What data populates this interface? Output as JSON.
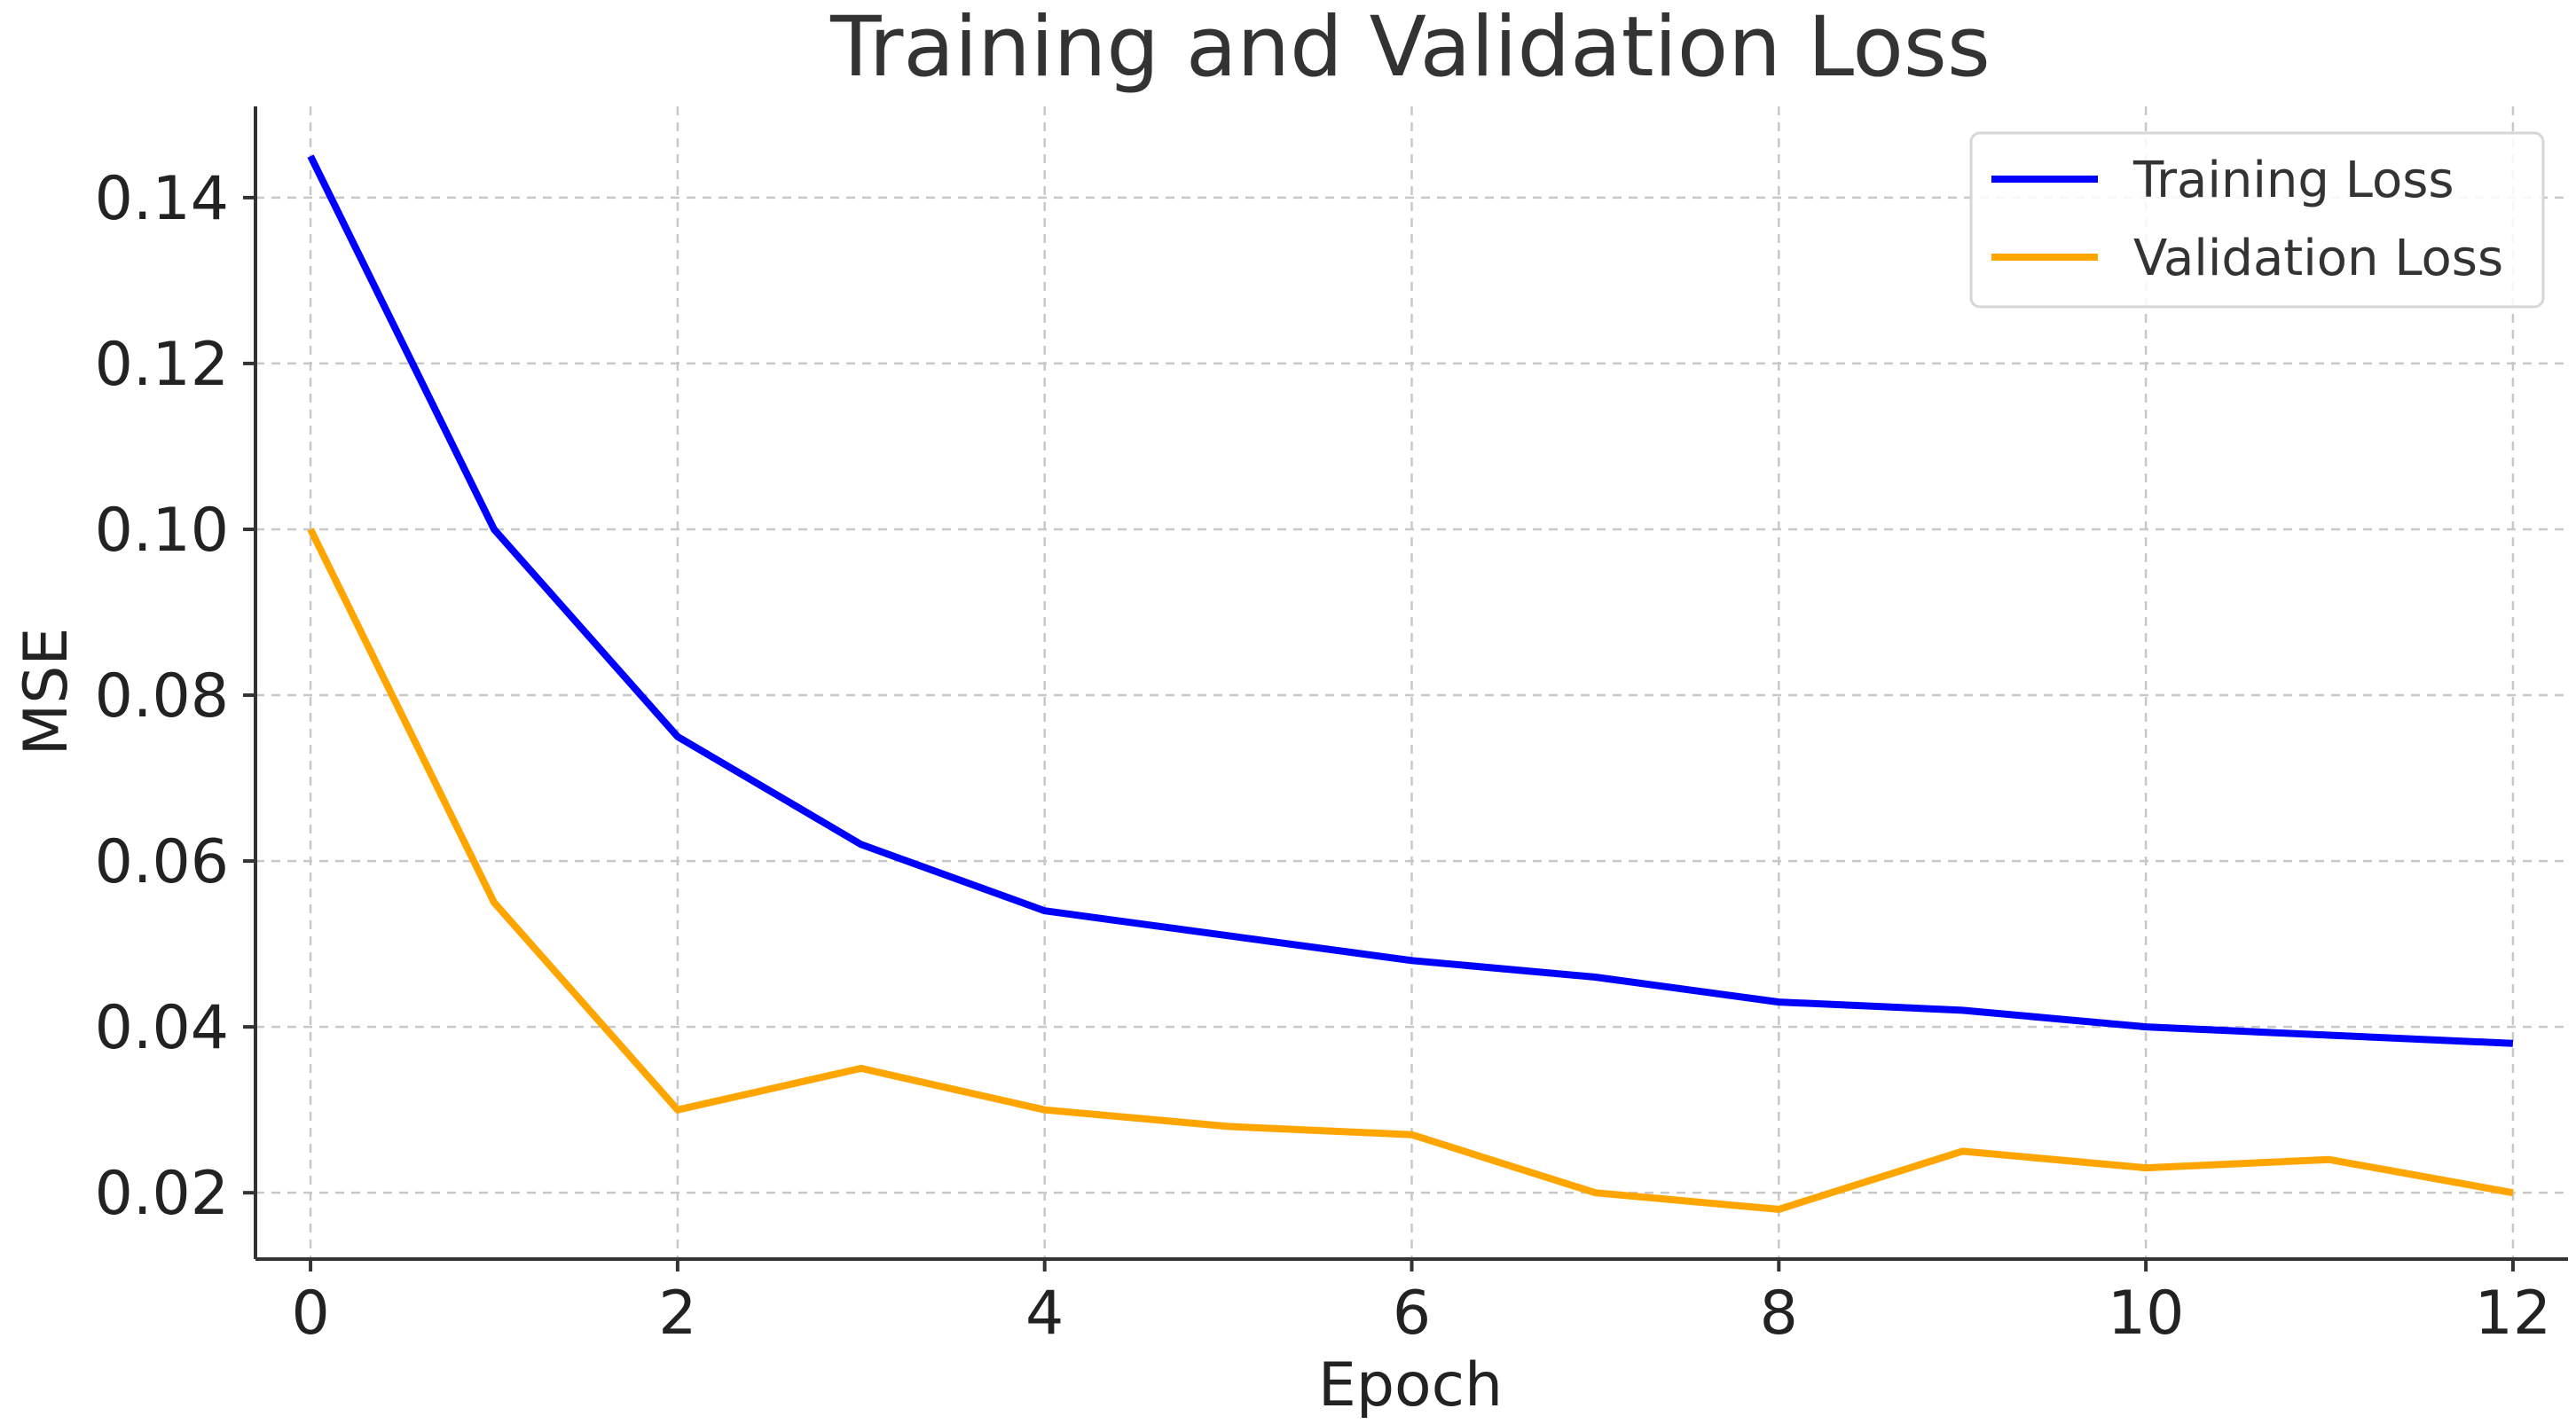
{
  "chart_data": {
    "type": "line",
    "title": "Training and Validation Loss",
    "xlabel": "Epoch",
    "ylabel": "MSE",
    "x": [
      0,
      1,
      2,
      3,
      4,
      5,
      6,
      7,
      8,
      9,
      10,
      11,
      12
    ],
    "xlim": [
      -0.3,
      12.3
    ],
    "ylim": [
      0.012,
      0.151
    ],
    "xticks": [
      0,
      2,
      4,
      6,
      8,
      10,
      12
    ],
    "xtick_labels": [
      "0",
      "2",
      "4",
      "6",
      "8",
      "10",
      "12"
    ],
    "yticks": [
      0.02,
      0.04,
      0.06,
      0.08,
      0.1,
      0.12,
      0.14
    ],
    "ytick_labels": [
      "0.02",
      "0.04",
      "0.06",
      "0.08",
      "0.10",
      "0.12",
      "0.14"
    ],
    "grid": true,
    "legend_position": "top-right",
    "series": [
      {
        "name": "Training Loss",
        "color": "#0000ff",
        "values": [
          0.145,
          0.1,
          0.075,
          0.062,
          0.054,
          0.051,
          0.048,
          0.046,
          0.043,
          0.042,
          0.04,
          0.039,
          0.038
        ]
      },
      {
        "name": "Validation Loss",
        "color": "#ffa500",
        "values": [
          0.1,
          0.055,
          0.03,
          0.035,
          0.03,
          0.028,
          0.027,
          0.02,
          0.018,
          0.025,
          0.023,
          0.024,
          0.02
        ]
      }
    ]
  }
}
